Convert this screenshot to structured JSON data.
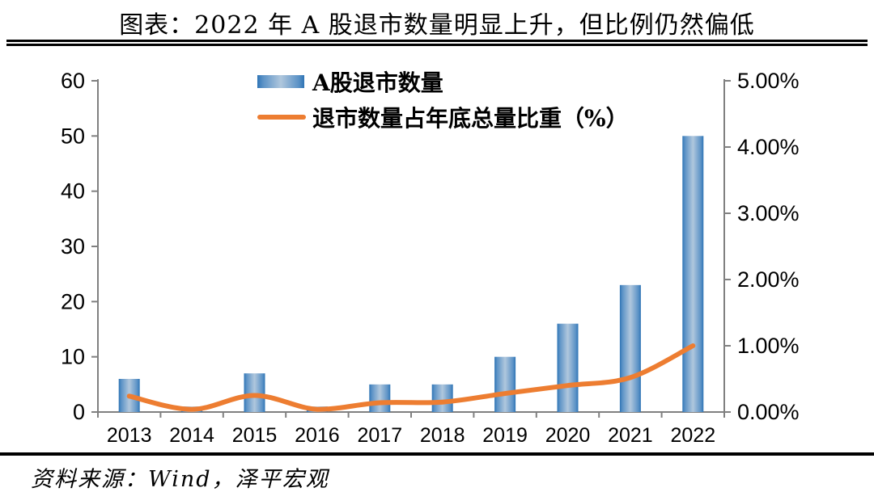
{
  "title": "图表：2022 年 A 股退市数量明显上升，但比例仍然偏低",
  "source": "资料来源：Wind，泽平宏观",
  "legend": {
    "bar_label": "A股退市数量",
    "line_label": "退市数量占年底总量比重（%）"
  },
  "colors": {
    "bar_edge": "#2E74B5",
    "bar_center": "#B0C7DD",
    "line": "#ED7D31",
    "axis": "#808080",
    "text": "#000000"
  },
  "chart_data": {
    "type": "bar",
    "subtype": "bar+line-dual-axis",
    "title": "图表：2022 年 A 股退市数量明显上升，但比例仍然偏低",
    "categories": [
      "2013",
      "2014",
      "2015",
      "2016",
      "2017",
      "2018",
      "2019",
      "2020",
      "2021",
      "2022"
    ],
    "series": [
      {
        "name": "A股退市数量",
        "type": "bar",
        "axis": "left",
        "values": [
          6,
          1,
          7,
          1,
          5,
          5,
          10,
          16,
          23,
          50
        ]
      },
      {
        "name": "退市数量占年底总量比重（%）",
        "type": "line",
        "axis": "right",
        "values": [
          0.24,
          0.04,
          0.25,
          0.04,
          0.14,
          0.15,
          0.28,
          0.4,
          0.52,
          1.0
        ]
      }
    ],
    "left_axis": {
      "min": 0,
      "max": 60,
      "step": 10,
      "ticks": [
        "0",
        "10",
        "20",
        "30",
        "40",
        "50",
        "60"
      ]
    },
    "right_axis": {
      "min": 0,
      "max": 5,
      "step": 1,
      "ticks": [
        "0.00%",
        "1.00%",
        "2.00%",
        "3.00%",
        "4.00%",
        "5.00%"
      ]
    },
    "xlabel": "",
    "ylabel_left": "",
    "ylabel_right": "",
    "grid": false,
    "legend_position": "top-center-inside"
  }
}
